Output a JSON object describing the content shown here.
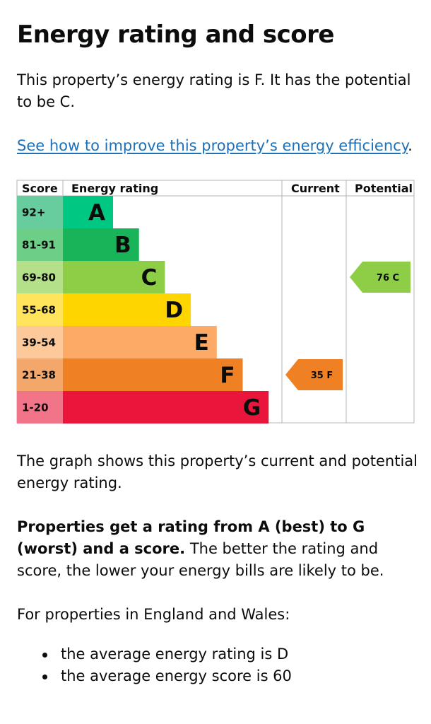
{
  "heading": "Energy rating and score",
  "intro": "This property’s energy rating is F. It has the potential to be C.",
  "improve_link": "See how to improve this property’s energy efficiency",
  "improve_punct": ".",
  "chart_data": {
    "type": "table",
    "columns": [
      "Score",
      "Energy rating",
      "Current",
      "Potential"
    ],
    "bands": [
      {
        "letter": "A",
        "range": "92+",
        "color": "#00c781",
        "range_color": "#67cc9e"
      },
      {
        "letter": "B",
        "range": "81-91",
        "color": "#19b459",
        "range_color": "#6dcf87"
      },
      {
        "letter": "C",
        "range": "69-80",
        "color": "#8dce46",
        "range_color": "#b4e08a"
      },
      {
        "letter": "D",
        "range": "55-68",
        "color": "#ffd500",
        "range_color": "#ffe45c"
      },
      {
        "letter": "E",
        "range": "39-54",
        "color": "#fcaa65",
        "range_color": "#fdc89a"
      },
      {
        "letter": "F",
        "range": "21-38",
        "color": "#ef8023",
        "range_color": "#f4a76b"
      },
      {
        "letter": "G",
        "range": "1-20",
        "color": "#e9153b",
        "range_color": "#f17489"
      }
    ],
    "current": {
      "score": 35,
      "letter": "F",
      "label": "35  F",
      "color": "#ef8023"
    },
    "potential": {
      "score": 76,
      "letter": "C",
      "label": "76  C",
      "color": "#8dce46"
    }
  },
  "graph_description": "The graph shows this property’s current and potential energy rating.",
  "rating_bold": "Properties get a rating from A (best) to G (worst) and a score.",
  "rating_rest": " The better the rating and score, the lower your energy bills are likely to be.",
  "england_wales": "For properties in England and Wales:",
  "averages": [
    "the average energy rating is D",
    "the average energy score is 60"
  ]
}
